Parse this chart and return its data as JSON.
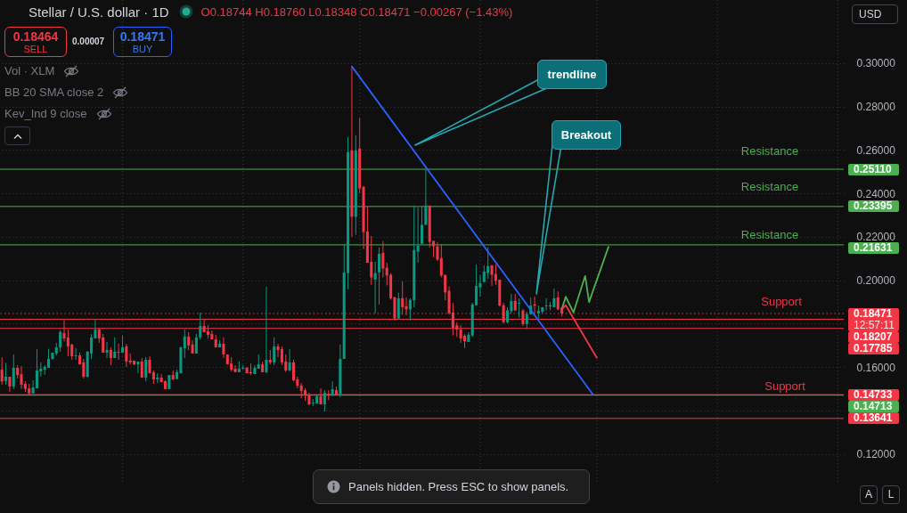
{
  "chart_data": {
    "type": "candlestick",
    "title": "Stellar / U.S. dollar · 1D",
    "subtitle": "O0.18744 H0.18760 L0.18348 C0.18471 −0.00267 (−1.43%)",
    "categories": [
      null,
      null,
      null,
      null,
      null,
      null,
      null,
      null,
      null,
      null,
      null,
      null,
      null,
      null,
      null,
      null,
      null,
      null,
      null,
      null,
      null,
      null,
      null,
      null,
      null,
      null,
      null,
      null,
      null,
      null,
      null,
      null,
      null,
      null,
      null,
      null,
      null,
      null,
      null,
      null,
      null,
      null,
      null,
      null,
      null,
      null,
      null,
      null,
      null,
      null,
      null,
      null,
      null,
      null,
      null,
      null,
      null,
      null,
      null,
      null,
      null,
      null,
      null,
      null,
      null,
      null,
      null,
      null,
      null,
      null,
      null,
      null,
      null,
      null,
      null,
      null,
      null,
      null,
      null,
      null,
      null,
      null,
      null,
      null,
      null,
      null,
      null,
      null,
      null,
      null,
      null,
      null,
      null,
      null,
      null,
      null,
      null,
      null,
      null,
      null,
      null,
      null,
      null,
      null,
      null,
      null,
      null,
      null,
      null,
      null,
      null,
      null,
      null,
      null,
      null,
      null,
      null,
      null,
      null,
      null,
      null,
      null,
      null,
      null,
      null,
      null,
      null,
      null,
      null,
      null,
      null,
      null,
      null,
      null,
      null,
      null,
      null,
      null,
      null,
      null,
      null,
      null,
      null,
      null,
      null,
      null,
      null,
      null,
      null,
      null,
      null,
      null,
      null,
      null,
      null,
      null,
      null,
      null,
      null,
      null,
      null,
      null,
      null,
      null,
      null,
      null,
      null,
      null,
      null,
      null,
      null,
      null,
      null,
      null,
      null,
      null,
      null,
      null,
      null,
      null,
      null,
      null,
      null,
      null,
      null,
      null,
      null,
      null,
      null,
      null,
      null,
      null,
      null,
      null,
      null,
      null,
      null,
      null,
      null,
      null,
      null,
      null,
      null,
      null,
      null,
      null,
      null,
      null,
      null,
      null,
      null,
      null,
      null,
      null,
      null,
      null,
      null
    ],
    "ohlc": [
      [
        0.1589,
        0.1646,
        0.152,
        0.1534
      ],
      [
        0.1537,
        0.162,
        0.152,
        0.1556
      ],
      [
        0.1556,
        0.1556,
        0.1486,
        0.1511
      ],
      [
        0.1511,
        0.1659,
        0.15,
        0.1597
      ],
      [
        0.1597,
        0.1609,
        0.1548,
        0.1564
      ],
      [
        0.1568,
        0.1605,
        0.15,
        0.1519
      ],
      [
        0.1523,
        0.1535,
        0.1486,
        0.15
      ],
      [
        0.1503,
        0.1523,
        0.1474,
        0.1479
      ],
      [
        0.1479,
        0.154,
        0.1479,
        0.1507
      ],
      [
        0.1503,
        0.1683,
        0.1503,
        0.1585
      ],
      [
        0.1581,
        0.1622,
        0.1557,
        0.1593
      ],
      [
        0.1589,
        0.1609,
        0.1565,
        0.1601
      ],
      [
        0.1597,
        0.1683,
        0.1597,
        0.1638
      ],
      [
        0.1637,
        0.1667,
        0.1637,
        0.1667
      ],
      [
        0.1663,
        0.1712,
        0.1654,
        0.1691
      ],
      [
        0.1691,
        0.1769,
        0.1671,
        0.1762
      ],
      [
        0.1757,
        0.1817,
        0.1719,
        0.1732
      ],
      [
        0.1737,
        0.1773,
        0.165,
        0.1695
      ],
      [
        0.1704,
        0.1708,
        0.1634,
        0.165
      ],
      [
        0.165,
        0.1687,
        0.1634,
        0.1654
      ],
      [
        0.1654,
        0.1667,
        0.1613,
        0.1613
      ],
      [
        0.1622,
        0.1638,
        0.1548,
        0.1556
      ],
      [
        0.1556,
        0.1675,
        0.1552,
        0.1671
      ],
      [
        0.1663,
        0.1753,
        0.1638,
        0.1737
      ],
      [
        0.1732,
        0.1823,
        0.1732,
        0.1773
      ],
      [
        0.1773,
        0.1782,
        0.1712,
        0.1732
      ],
      [
        0.1737,
        0.1753,
        0.1667,
        0.1667
      ],
      [
        0.1667,
        0.1716,
        0.1642,
        0.1679
      ],
      [
        0.1679,
        0.1691,
        0.1609,
        0.1642
      ],
      [
        0.1642,
        0.1737,
        0.1642,
        0.1671
      ],
      [
        0.1671,
        0.1708,
        0.1634,
        0.1667
      ],
      [
        0.1667,
        0.1745,
        0.1667,
        0.1691
      ],
      [
        0.1695,
        0.1708,
        0.1601,
        0.1626
      ],
      [
        0.163,
        0.1663,
        0.1613,
        0.1622
      ],
      [
        0.163,
        0.163,
        0.1609,
        0.1613
      ],
      [
        0.1613,
        0.1626,
        0.1572,
        0.1626
      ],
      [
        0.1626,
        0.1642,
        0.1552,
        0.1552
      ],
      [
        0.1552,
        0.1646,
        0.1535,
        0.1634
      ],
      [
        0.1634,
        0.165,
        0.1572,
        0.1572
      ],
      [
        0.1577,
        0.1585,
        0.1523,
        0.1544
      ],
      [
        0.1544,
        0.1572,
        0.1527,
        0.1552
      ],
      [
        0.1552,
        0.1568,
        0.1531,
        0.1531
      ],
      [
        0.1535,
        0.154,
        0.1499,
        0.1499
      ],
      [
        0.1499,
        0.1564,
        0.1499,
        0.1564
      ],
      [
        0.1564,
        0.1585,
        0.154,
        0.1544
      ],
      [
        0.1545,
        0.1589,
        0.1545,
        0.1577
      ],
      [
        0.1572,
        0.1695,
        0.1572,
        0.1691
      ],
      [
        0.1687,
        0.1773,
        0.1642,
        0.1741
      ],
      [
        0.1741,
        0.1761,
        0.1679,
        0.17
      ],
      [
        0.1704,
        0.1724,
        0.1663,
        0.1663
      ],
      [
        0.1663,
        0.1753,
        0.1663,
        0.1737
      ],
      [
        0.1737,
        0.1851,
        0.1728,
        0.179
      ],
      [
        0.179,
        0.1823,
        0.1761,
        0.1761
      ],
      [
        0.1765,
        0.1794,
        0.1732,
        0.1749
      ],
      [
        0.1753,
        0.1769,
        0.1728,
        0.1728
      ],
      [
        0.1728,
        0.1749,
        0.1691,
        0.1691
      ],
      [
        0.1691,
        0.1724,
        0.1691,
        0.1708
      ],
      [
        0.1708,
        0.1737,
        0.1642,
        0.1659
      ],
      [
        0.1659,
        0.1659,
        0.1613,
        0.1613
      ],
      [
        0.1617,
        0.1646,
        0.1581,
        0.1589
      ],
      [
        0.1593,
        0.1609,
        0.1577,
        0.1577
      ],
      [
        0.1577,
        0.1626,
        0.1577,
        0.1593
      ],
      [
        0.1593,
        0.1609,
        0.1589,
        0.1597
      ],
      [
        0.1597,
        0.1601,
        0.1572,
        0.1572
      ],
      [
        0.1577,
        0.1617,
        0.1564,
        0.1572
      ],
      [
        0.1568,
        0.1609,
        0.1568,
        0.1597
      ],
      [
        0.1593,
        0.1659,
        0.1593,
        0.1613
      ],
      [
        0.1613,
        0.1626,
        0.1577,
        0.1577
      ],
      [
        0.1577,
        0.197,
        0.1572,
        0.1634
      ],
      [
        0.1634,
        0.1679,
        0.1613,
        0.1622
      ],
      [
        0.1622,
        0.1737,
        0.1609,
        0.1695
      ],
      [
        0.1695,
        0.1708,
        0.1646,
        0.1679
      ],
      [
        0.1683,
        0.1695,
        0.1609,
        0.1622
      ],
      [
        0.1626,
        0.1659,
        0.1577,
        0.1585
      ],
      [
        0.1585,
        0.1683,
        0.1581,
        0.1622
      ],
      [
        0.1622,
        0.1634,
        0.1535,
        0.154
      ],
      [
        0.1544,
        0.1556,
        0.1503,
        0.1515
      ],
      [
        0.1515,
        0.1527,
        0.1457,
        0.149
      ],
      [
        0.1494,
        0.1503,
        0.1445,
        0.147
      ],
      [
        0.1474,
        0.1482,
        0.1425,
        0.1429
      ],
      [
        0.1433,
        0.1453,
        0.1421,
        0.1437
      ],
      [
        0.1433,
        0.147,
        0.1433,
        0.1466
      ],
      [
        0.1466,
        0.1503,
        0.1429,
        0.1429
      ],
      [
        0.1429,
        0.1494,
        0.1396,
        0.1482
      ],
      [
        0.1478,
        0.1494,
        0.1449,
        0.1474
      ],
      [
        0.147,
        0.1535,
        0.1466,
        0.1499
      ],
      [
        0.1494,
        0.1511,
        0.147,
        0.147
      ],
      [
        0.147,
        0.1704,
        0.1462,
        0.1638
      ],
      [
        0.1638,
        0.2167,
        0.1638,
        0.2036
      ],
      [
        0.2033,
        0.266,
        0.1958,
        0.259
      ],
      [
        0.2598,
        0.2984,
        0.22,
        0.2292
      ],
      [
        0.2292,
        0.2668,
        0.2209,
        0.2598
      ],
      [
        0.2606,
        0.2746,
        0.2402,
        0.2423
      ],
      [
        0.243,
        0.2434,
        0.2143,
        0.2222
      ],
      [
        0.2225,
        0.234,
        0.2081,
        0.2081
      ],
      [
        0.2085,
        0.2204,
        0.1979,
        0.2013
      ],
      [
        0.2003,
        0.2085,
        0.1848,
        0.2033
      ],
      [
        0.2036,
        0.2151,
        0.1889,
        0.2122
      ],
      [
        0.2126,
        0.218,
        0.2013,
        0.2054
      ],
      [
        0.2058,
        0.2081,
        0.1976,
        0.2022
      ],
      [
        0.2025,
        0.2033,
        0.191,
        0.1917
      ],
      [
        0.1921,
        0.1925,
        0.1814,
        0.1824
      ],
      [
        0.1824,
        0.1943,
        0.1824,
        0.1917
      ],
      [
        0.1917,
        0.1995,
        0.1842,
        0.1876
      ],
      [
        0.188,
        0.1921,
        0.1839,
        0.1866
      ],
      [
        0.1866,
        0.1917,
        0.1814,
        0.191
      ],
      [
        0.1908,
        0.2344,
        0.1876,
        0.2139
      ],
      [
        0.2132,
        0.2335,
        0.2081,
        0.2159
      ],
      [
        0.2168,
        0.234,
        0.2168,
        0.2255
      ],
      [
        0.2255,
        0.2512,
        0.2255,
        0.2344
      ],
      [
        0.2344,
        0.2344,
        0.2151,
        0.2177
      ],
      [
        0.2181,
        0.2181,
        0.2106,
        0.2156
      ],
      [
        0.2156,
        0.2175,
        0.2089,
        0.2095
      ],
      [
        0.2102,
        0.2167,
        0.2013,
        0.2022
      ],
      [
        0.2025,
        0.2025,
        0.1908,
        0.1944
      ],
      [
        0.1951,
        0.1972,
        0.1842,
        0.1848
      ],
      [
        0.1851,
        0.1896,
        0.1746,
        0.178
      ],
      [
        0.1793,
        0.1806,
        0.1739,
        0.1773
      ],
      [
        0.1773,
        0.1794,
        0.1712,
        0.1732
      ],
      [
        0.1745,
        0.1753,
        0.1688,
        0.1719
      ],
      [
        0.1716,
        0.1761,
        0.1716,
        0.1749
      ],
      [
        0.1746,
        0.1896,
        0.1739,
        0.1889
      ],
      [
        0.1885,
        0.2073,
        0.1885,
        0.1974
      ],
      [
        0.1967,
        0.2024,
        0.1925,
        0.1987
      ],
      [
        0.1992,
        0.2069,
        0.1992,
        0.204
      ],
      [
        0.2033,
        0.2151,
        0.2007,
        0.2065
      ],
      [
        0.2069,
        0.2069,
        0.1974,
        0.2025
      ],
      [
        0.2029,
        0.2074,
        0.1979,
        0.1998
      ],
      [
        0.2003,
        0.2003,
        0.1879,
        0.1883
      ],
      [
        0.1885,
        0.1896,
        0.1801,
        0.1807
      ],
      [
        0.1807,
        0.1876,
        0.1801,
        0.1862
      ],
      [
        0.1858,
        0.1937,
        0.1848,
        0.1905
      ],
      [
        0.1905,
        0.1937,
        0.1861,
        0.1861
      ],
      [
        0.1892,
        0.1917,
        0.1828,
        0.1896
      ],
      [
        0.1861,
        0.1868,
        0.179,
        0.1798
      ],
      [
        0.1798,
        0.1855,
        0.1776,
        0.1844
      ],
      [
        0.1844,
        0.1921,
        0.1842,
        0.1884
      ],
      [
        0.1889,
        0.1925,
        0.1848,
        0.1883
      ],
      [
        0.1848,
        0.1884,
        0.1825,
        0.186
      ],
      [
        0.1855,
        0.1876,
        0.1848,
        0.1876
      ],
      [
        0.188,
        0.1917,
        0.1862,
        0.1884
      ],
      [
        0.188,
        0.19,
        0.1862,
        0.1885
      ],
      [
        0.1876,
        0.1962,
        0.1876,
        0.1917
      ],
      [
        0.1921,
        0.1949,
        0.1862,
        0.1866
      ],
      [
        0.18744,
        0.1876,
        0.18348,
        0.18471
      ],
      null,
      null,
      null,
      null,
      null,
      null,
      null,
      null,
      null,
      null,
      null,
      null,
      null,
      null,
      null,
      null,
      null,
      null,
      null,
      null,
      null,
      null,
      null,
      null,
      null,
      null,
      null,
      null,
      null,
      null,
      null,
      null,
      null,
      null,
      null,
      null,
      null,
      null,
      null,
      null,
      null,
      null,
      null,
      null,
      null,
      null,
      null,
      null,
      null,
      null,
      null,
      null,
      null,
      null,
      null,
      null,
      null,
      null,
      null,
      null,
      null,
      null,
      null,
      null,
      null,
      null,
      null,
      null,
      null,
      null,
      null,
      null
    ],
    "colors": [
      "#f23645",
      "#089981",
      "#f23645",
      "#089981",
      "#f23645",
      "#f23645",
      "#f23645",
      "#f23645",
      "#089981",
      "#089981",
      "#089981",
      "#089981",
      "#089981",
      "#089981",
      "#089981",
      "#089981",
      "#f23645",
      "#f23645",
      "#f23645",
      "#089981",
      "#f23645",
      "#f23645",
      "#089981",
      "#089981",
      "#089981",
      "#f23645",
      "#f23645",
      "#089981",
      "#f23645",
      "#089981",
      "#f23645",
      "#089981",
      "#f23645",
      "#f23645",
      "#f23645",
      "#089981",
      "#f23645",
      "#089981",
      "#f23645",
      "#f23645",
      "#089981",
      "#f23645",
      "#f23645",
      "#089981",
      "#f23645",
      "#089981",
      "#089981",
      "#089981",
      "#f23645",
      "#f23645",
      "#089981",
      "#089981",
      "#f23645",
      "#f23645",
      "#f23645",
      "#f23645",
      "#089981",
      "#f23645",
      "#f23645",
      "#f23645",
      "#f23645",
      "#089981",
      "#089981",
      "#f23645",
      "#f23645",
      "#089981",
      "#089981",
      "#f23645",
      "#089981",
      "#f23645",
      "#089981",
      "#f23645",
      "#f23645",
      "#f23645",
      "#089981",
      "#f23645",
      "#f23645",
      "#f23645",
      "#f23645",
      "#f23645",
      "#089981",
      "#089981",
      "#f23645",
      "#089981",
      "#f23645",
      "#089981",
      "#f23645",
      "#089981",
      "#089981",
      "#089981",
      "#f23645",
      "#089981",
      "#f23645",
      "#f23645",
      "#f23645",
      "#f23645",
      "#089981",
      "#089981",
      "#f23645",
      "#f23645",
      "#f23645",
      "#f23645",
      "#089981",
      "#f23645",
      "#f23645",
      "#089981",
      "#089981",
      "#089981",
      "#089981",
      "#089981",
      "#f23645",
      "#f23645",
      "#f23645",
      "#f23645",
      "#f23645",
      "#f23645",
      "#f23645",
      "#f23645",
      "#f23645",
      "#f23645",
      "#089981",
      "#089981",
      "#089981",
      "#089981",
      "#089981",
      "#089981",
      "#f23645",
      "#f23645",
      "#f23645",
      "#f23645",
      "#089981",
      "#089981",
      "#f23645",
      "#089981",
      "#f23645",
      "#089981",
      "#089981",
      "#f23645",
      "#089981",
      "#089981",
      "#089981",
      "#089981",
      "#089981",
      "#f23645",
      "#f23645",
      null,
      null,
      null,
      null,
      null,
      null,
      null,
      null,
      null,
      null,
      null,
      null,
      null,
      null,
      null,
      null,
      null,
      null,
      null,
      null,
      null,
      null,
      null,
      null,
      null,
      null,
      null,
      null,
      null,
      null,
      null,
      null,
      null,
      null,
      null,
      null,
      null,
      null,
      null,
      null,
      null,
      null,
      null,
      null,
      null,
      null,
      null,
      null,
      null,
      null,
      null,
      null,
      null,
      null,
      null,
      null,
      null,
      null,
      null,
      null,
      null,
      null,
      null,
      null,
      null,
      null,
      null,
      null,
      null,
      null,
      null,
      null
    ],
    "series": [
      {
        "type": "line",
        "color": "#2962ff",
        "values": [
          null,
          null,
          null,
          null,
          null,
          null,
          null,
          null,
          null,
          null,
          null,
          null,
          null,
          null,
          null,
          null,
          null,
          null,
          null,
          null,
          null,
          null,
          null,
          null,
          null,
          null,
          null,
          null,
          null,
          null,
          null,
          null,
          null,
          null,
          null,
          null,
          null,
          null,
          null,
          null,
          null,
          null,
          null,
          null,
          null,
          null,
          null,
          null,
          null,
          null,
          null,
          null,
          null,
          null,
          null,
          null,
          null,
          null,
          null,
          null,
          null,
          null,
          null,
          null,
          null,
          null,
          null,
          null,
          null,
          null,
          null,
          null,
          null,
          null,
          null,
          null,
          null,
          null,
          null,
          null,
          null,
          null,
          null,
          null,
          null,
          null,
          null,
          null,
          null,
          null,
          0.2984,
          null,
          null,
          null,
          null,
          null,
          null,
          null,
          null,
          null,
          null,
          null,
          null,
          null,
          null,
          null,
          null,
          null,
          null,
          null,
          null,
          null,
          null,
          null,
          null,
          null,
          null,
          null,
          null,
          null,
          null,
          null,
          null,
          null,
          null,
          null,
          null,
          null,
          null,
          null,
          null,
          null,
          null,
          null,
          null,
          null,
          null,
          null,
          null,
          null,
          null,
          null,
          null,
          null,
          null,
          null,
          null,
          null,
          null,
          null,
          null,
          null,
          0.1474,
          null,
          null,
          null,
          null,
          null,
          null,
          null,
          null,
          null,
          null,
          null,
          null,
          null,
          null,
          null,
          null,
          null,
          null,
          null,
          null,
          null,
          null,
          null,
          null,
          null,
          null,
          null,
          null,
          null,
          null,
          null,
          null,
          null,
          null,
          null,
          null,
          null,
          null,
          null,
          null,
          null,
          null,
          null,
          null,
          null,
          null,
          null,
          null,
          null,
          null,
          null,
          null,
          null,
          null,
          null,
          null,
          null,
          null,
          null,
          null,
          null,
          null,
          null,
          null
        ]
      },
      {
        "type": "line",
        "color": "#4caf50",
        "values": [
          null,
          null,
          null,
          null,
          null,
          null,
          null,
          null,
          null,
          null,
          null,
          null,
          null,
          null,
          null,
          null,
          null,
          null,
          null,
          null,
          null,
          null,
          null,
          null,
          null,
          null,
          null,
          null,
          null,
          null,
          null,
          null,
          null,
          null,
          null,
          null,
          null,
          null,
          null,
          null,
          null,
          null,
          null,
          null,
          null,
          null,
          null,
          null,
          null,
          null,
          null,
          null,
          null,
          null,
          null,
          null,
          null,
          null,
          null,
          null,
          null,
          null,
          null,
          null,
          null,
          null,
          null,
          null,
          null,
          null,
          null,
          null,
          null,
          null,
          null,
          null,
          null,
          null,
          null,
          null,
          null,
          null,
          null,
          null,
          null,
          null,
          null,
          null,
          null,
          null,
          null,
          null,
          null,
          null,
          null,
          null,
          null,
          null,
          null,
          null,
          null,
          null,
          null,
          null,
          null,
          null,
          null,
          null,
          null,
          null,
          null,
          null,
          null,
          null,
          null,
          null,
          null,
          null,
          null,
          null,
          null,
          null,
          null,
          null,
          null,
          null,
          null,
          null,
          null,
          null,
          null,
          null,
          null,
          null,
          null,
          null,
          null,
          null,
          null,
          null,
          null,
          null,
          null,
          null,
          0.1867,
          0.1924,
          null,
          0.1852,
          null,
          null,
          0.202,
          0.19,
          null,
          null,
          null,
          null,
          0.2154,
          null,
          null,
          null,
          null,
          null,
          null,
          null,
          null,
          null,
          null,
          null,
          null,
          null,
          null,
          null,
          null,
          null,
          null,
          null,
          null,
          null,
          null,
          null,
          null,
          null,
          null,
          null,
          null,
          null,
          null,
          null,
          null,
          null,
          null,
          null,
          null,
          null,
          null,
          null,
          null,
          null,
          null,
          null,
          null,
          null,
          null,
          null,
          null,
          null,
          null,
          null,
          null,
          null,
          null,
          null,
          null,
          null,
          null,
          null,
          null
        ]
      },
      {
        "type": "line",
        "color": "#f23645",
        "values": [
          null,
          null,
          null,
          null,
          null,
          null,
          null,
          null,
          null,
          null,
          null,
          null,
          null,
          null,
          null,
          null,
          null,
          null,
          null,
          null,
          null,
          null,
          null,
          null,
          null,
          null,
          null,
          null,
          null,
          null,
          null,
          null,
          null,
          null,
          null,
          null,
          null,
          null,
          null,
          null,
          null,
          null,
          null,
          null,
          null,
          null,
          null,
          null,
          null,
          null,
          null,
          null,
          null,
          null,
          null,
          null,
          null,
          null,
          null,
          null,
          null,
          null,
          null,
          null,
          null,
          null,
          null,
          null,
          null,
          null,
          null,
          null,
          null,
          null,
          null,
          null,
          null,
          null,
          null,
          null,
          null,
          null,
          null,
          null,
          null,
          null,
          null,
          null,
          null,
          null,
          null,
          null,
          null,
          null,
          null,
          null,
          null,
          null,
          null,
          null,
          null,
          null,
          null,
          null,
          null,
          null,
          null,
          null,
          null,
          null,
          null,
          null,
          null,
          null,
          null,
          null,
          null,
          null,
          null,
          null,
          null,
          null,
          null,
          null,
          null,
          null,
          null,
          null,
          null,
          null,
          null,
          null,
          null,
          null,
          null,
          null,
          null,
          null,
          null,
          null,
          null,
          null,
          null,
          null,
          0.1867,
          0.1885,
          null,
          null,
          null,
          null,
          null,
          null,
          null,
          0.1643,
          null,
          null,
          null,
          null,
          null,
          null,
          null,
          null,
          null,
          null,
          null,
          null,
          null,
          null,
          null,
          null,
          null,
          null,
          null,
          null,
          null,
          null,
          null,
          null,
          null,
          null,
          null,
          null,
          null,
          null,
          null,
          null,
          null,
          null,
          null,
          null,
          null,
          null,
          null,
          null,
          null,
          null,
          null,
          null,
          null,
          null,
          null,
          null,
          null,
          null,
          null,
          null,
          null,
          null,
          null,
          null,
          null,
          null,
          null,
          null,
          null,
          null,
          null
        ]
      }
    ],
    "ylim": [
      0.106,
      0.329
    ],
    "yticks": [
      {
        "value": 0.3,
        "label": "0.30000"
      },
      {
        "value": 0.28,
        "label": "0.28000"
      },
      {
        "value": 0.26,
        "label": "0.26000"
      },
      {
        "value": 0.24,
        "label": "0.24000"
      },
      {
        "value": 0.22,
        "label": "0.22000"
      },
      {
        "value": 0.2,
        "label": "0.20000"
      },
      {
        "value": 0.18,
        "label": null
      },
      {
        "value": 0.16,
        "label": "0.16000"
      },
      {
        "value": 0.14,
        "label": null
      },
      {
        "value": 0.12,
        "label": "0.12000"
      }
    ],
    "ref_lines": [
      {
        "axis": "y",
        "value": 0.2511,
        "label": "0.25110",
        "color": "#4caf50"
      },
      {
        "axis": "y",
        "value": 0.23395,
        "label": "0.23395",
        "color": "#4caf50"
      },
      {
        "axis": "y",
        "value": 0.21631,
        "label": "0.21631",
        "color": "#4caf50"
      },
      {
        "axis": "y",
        "value": 0.18471,
        "label": "0.18471",
        "color": "#f23645",
        "line_style": "dotted"
      },
      {
        "axis": "y",
        "value": 0.18207,
        "label": "0.18207",
        "color": "#f23645"
      },
      {
        "axis": "y",
        "value": 0.17785,
        "label": "0.17785",
        "color": "#f23645"
      },
      {
        "axis": "y",
        "value": 0.14733,
        "label": "0.14733",
        "color": "#f23645"
      },
      {
        "axis": "y",
        "value": 0.14713,
        "label": "0.14713",
        "color": "#4caf50"
      },
      {
        "axis": "y",
        "value": 0.13641,
        "label": "0.13641",
        "color": "#f23645"
      }
    ],
    "grid": true,
    "tick_labels": "y",
    "legend": "right",
    "annotations": [
      "0.18464",
      "SELL",
      "0.00007",
      "0.18471",
      "BUY",
      "Vol · XLM",
      "BB 20 SMA close 2",
      "Kev_Ind 9 close",
      "trendline",
      "Breakout",
      "USD",
      "Panels hidden. Press ESC to show panels.",
      "A",
      "L",
      "12:57:11",
      "Resistance",
      "Resistance",
      "Resistance",
      "Support",
      "Support"
    ]
  }
}
